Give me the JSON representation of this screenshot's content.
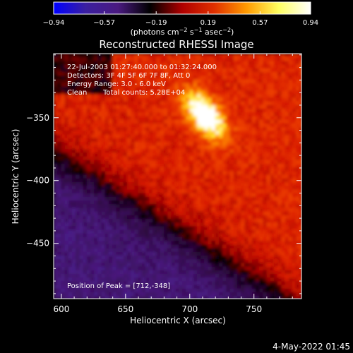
{
  "chart_data": {
    "type": "heatmap",
    "title": "Reconstructed RHESSI Image",
    "xlabel": "Heliocentric X (arcsec)",
    "ylabel": "Heliocentric Y (arcsec)",
    "xlim": [
      594,
      787
    ],
    "ylim": [
      -494,
      -299
    ],
    "x_ticks": [
      600,
      650,
      700,
      750
    ],
    "x_tick_labels": [
      "600",
      "650",
      "700",
      "750"
    ],
    "y_ticks": [
      -350,
      -400,
      -450
    ],
    "y_tick_labels": [
      "−350",
      "−400",
      "−450"
    ],
    "colorbar": {
      "range": [
        -0.94,
        0.94
      ],
      "ticks": [
        -0.94,
        -0.57,
        -0.19,
        0.19,
        0.57,
        0.94
      ],
      "tick_labels": [
        "−0.94",
        "−0.57",
        "−0.19",
        "0.19",
        "0.57",
        "0.94"
      ],
      "colors": [
        "#0000ff",
        "#3b1fa0",
        "#4a1a80",
        "#000000",
        "#b00000",
        "#e03000",
        "#ff9a00",
        "#ffff60",
        "#ffffff"
      ]
    },
    "peak": {
      "x": 712,
      "y": -348,
      "value": 0.94
    },
    "annotations": {
      "time": "22-Jul-2003 01:27:40.000 to 01:32:24.000",
      "detectors": "Detectors: 3F 4F 5F 6F 7F 8F, Att 0",
      "energy": "Energy Range: 3.0 - 6.0 keV",
      "clean": "Clean",
      "counts": "Total counts: 5.28E+04",
      "peak_position": "Position of Peak = [712,-348]"
    },
    "footer_date": "4-May-2022 01:45"
  }
}
